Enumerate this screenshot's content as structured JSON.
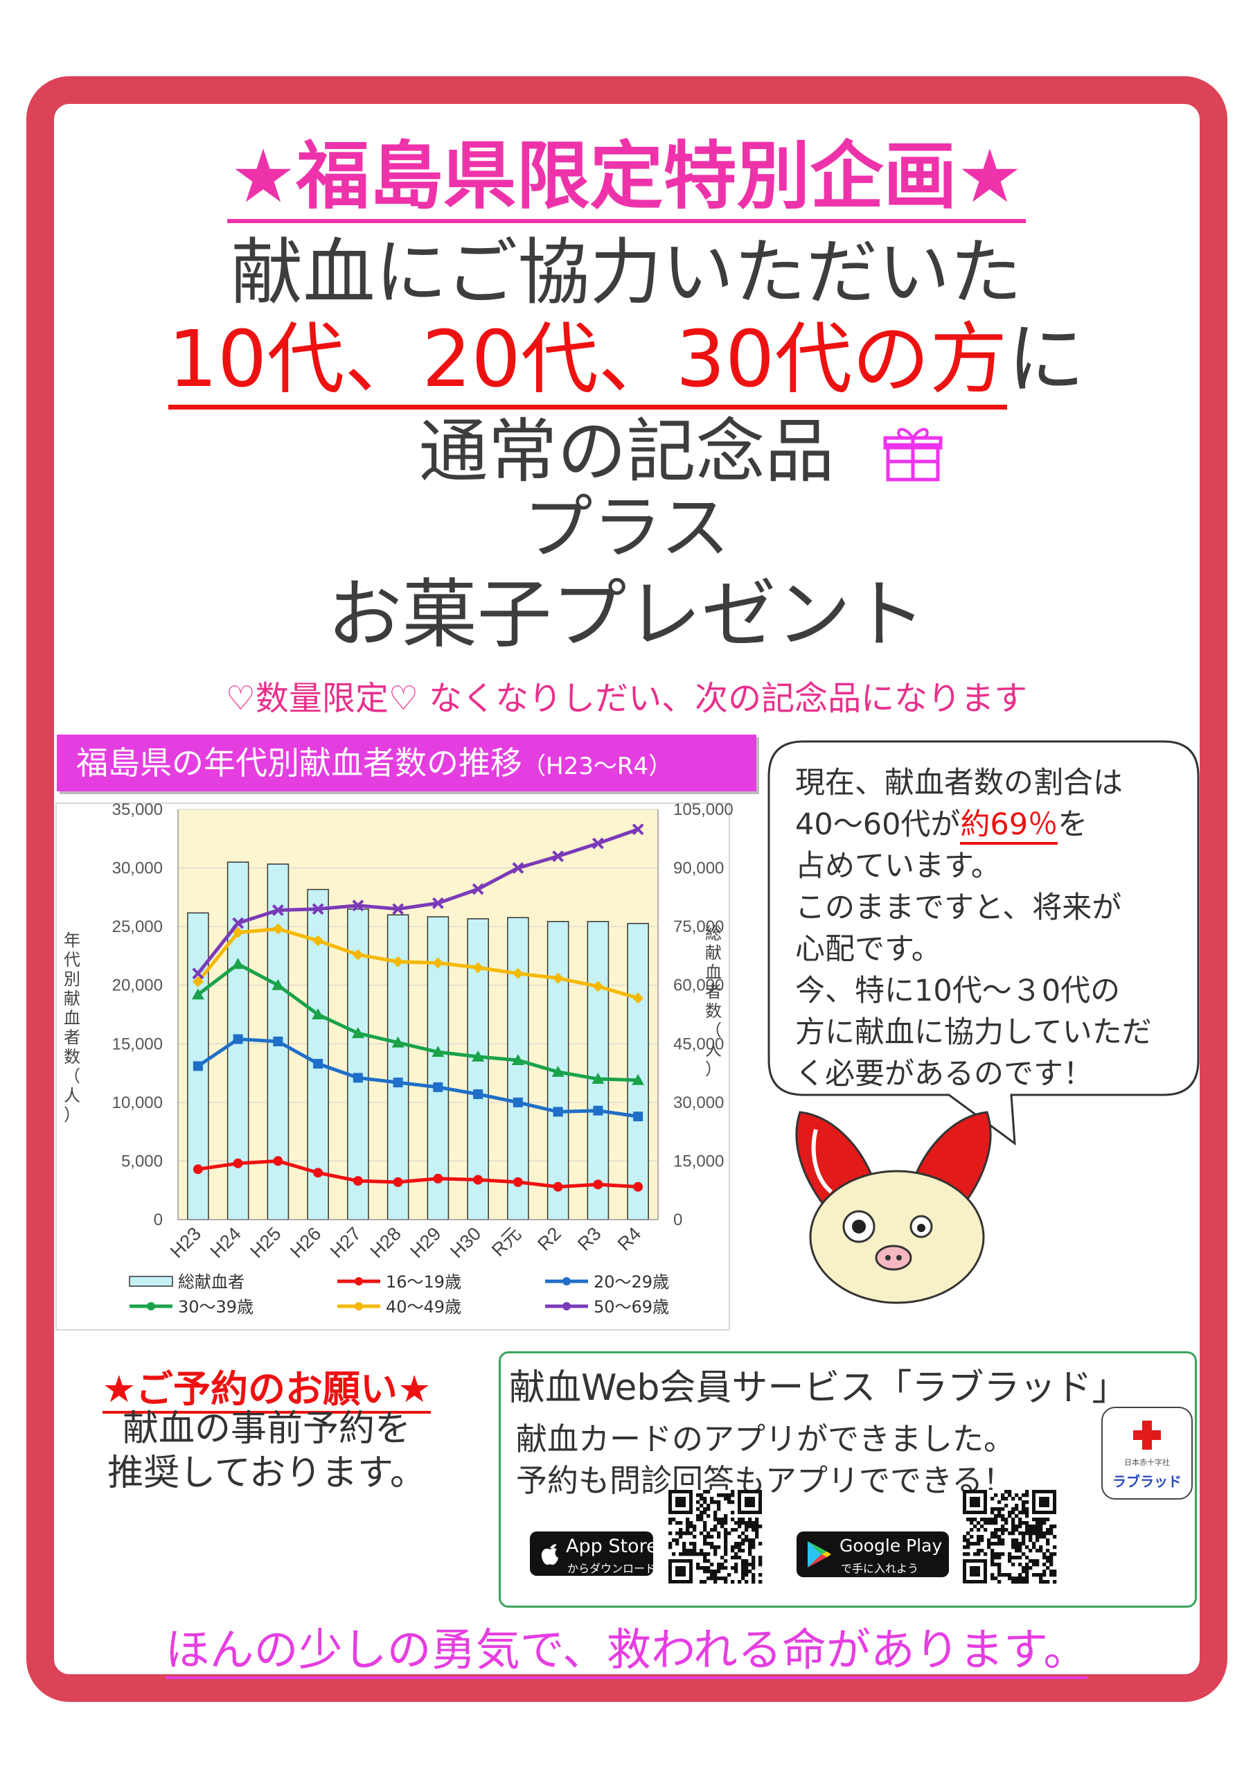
{
  "title": "★福島県限定特別企画★",
  "headline": {
    "line1": "献血にご協力いただいた",
    "line2_red": "10代、20代、30代の方",
    "line2_end": "に",
    "line3": "通常の記念品",
    "line4": "プラス",
    "line5": "お菓子プレゼント"
  },
  "limited_note": "♡数量限定♡ なくなりしだい、次の記念品になります",
  "chart_heading": "福島県の年代別献血者数の推移",
  "chart_heading_period": "（H23～R4）",
  "chart_data": {
    "type": "bar+line",
    "categories": [
      "H23",
      "H24",
      "H25",
      "H26",
      "H27",
      "H28",
      "H29",
      "H30",
      "R元",
      "R2",
      "R3",
      "R4"
    ],
    "y_left_label": "年代別献血者数（人）",
    "y_right_label": "総献血者数（人）",
    "y_left_range": [
      0,
      35000
    ],
    "y_right_range": [
      0,
      105000
    ],
    "y_left_ticks": [
      "0",
      "5,000",
      "10,000",
      "15,000",
      "20,000",
      "25,000",
      "30,000",
      "35,000"
    ],
    "y_right_ticks": [
      "0",
      "15,000",
      "30,000",
      "45,000",
      "60,000",
      "75,000",
      "90,000",
      "105,000"
    ],
    "bar_series": {
      "name": "総献血者",
      "axis": "right",
      "color": "#c6f2f6",
      "values": [
        78500,
        91500,
        91000,
        84500,
        79500,
        78000,
        77500,
        77000,
        77300,
        76300,
        76300,
        75800
      ]
    },
    "line_series": [
      {
        "name": "16～19歳",
        "color": "#ee1111",
        "marker": "circle",
        "values": [
          4300,
          4800,
          5000,
          4000,
          3300,
          3200,
          3500,
          3400,
          3200,
          2800,
          3000,
          2800
        ]
      },
      {
        "name": "20～29歳",
        "color": "#1f6fc8",
        "marker": "square",
        "values": [
          13100,
          15400,
          15200,
          13300,
          12100,
          11700,
          11300,
          10700,
          10000,
          9200,
          9300,
          8800
        ]
      },
      {
        "name": "30～39歳",
        "color": "#1aa34a",
        "marker": "triangle",
        "values": [
          19200,
          21800,
          20000,
          17500,
          15900,
          15100,
          14300,
          13900,
          13600,
          12600,
          12000,
          11900
        ]
      },
      {
        "name": "40～49歳",
        "color": "#f5b800",
        "marker": "diamond",
        "values": [
          20300,
          24500,
          24800,
          23800,
          22600,
          22000,
          21900,
          21500,
          21000,
          20600,
          19900,
          18900
        ]
      },
      {
        "name": "50～69歳",
        "color": "#7a3ab8",
        "marker": "x",
        "values": [
          21000,
          25300,
          26400,
          26500,
          26800,
          26500,
          27000,
          28200,
          30000,
          31000,
          32100,
          33300
        ]
      }
    ],
    "background": "#fdf5cf",
    "legend_position": "bottom"
  },
  "bubble": {
    "l1": "現在、献血者数の割合は",
    "l2a": "40～60代が",
    "l2b": "約69％",
    "l2c": "を",
    "l3": "占めています。",
    "l4": "このままですと、将来が",
    "l5": "心配です。",
    "l6": "今、特に10代～３0代の",
    "l7": "方に献血に協力していただ",
    "l8": "く必要があるのです！"
  },
  "reserve": {
    "title": "★ご予約のお願い★",
    "l1": "献血の事前予約を",
    "l2": "推奨しております。"
  },
  "web_service": {
    "title": "献血Web会員サービス「ラブラッド」",
    "l1": "献血カードのアプリができました。",
    "l2": "予約も問診回答もアプリでできる！",
    "app_store_big": "App Store",
    "app_store_small": "からダウンロード",
    "google_big": "Google Play",
    "google_small": "で手に入れよう",
    "app_brand": "ラブラッド",
    "app_org": "日本赤十字社"
  },
  "footer": "ほんの少しの勇気で、救われる命があります。"
}
